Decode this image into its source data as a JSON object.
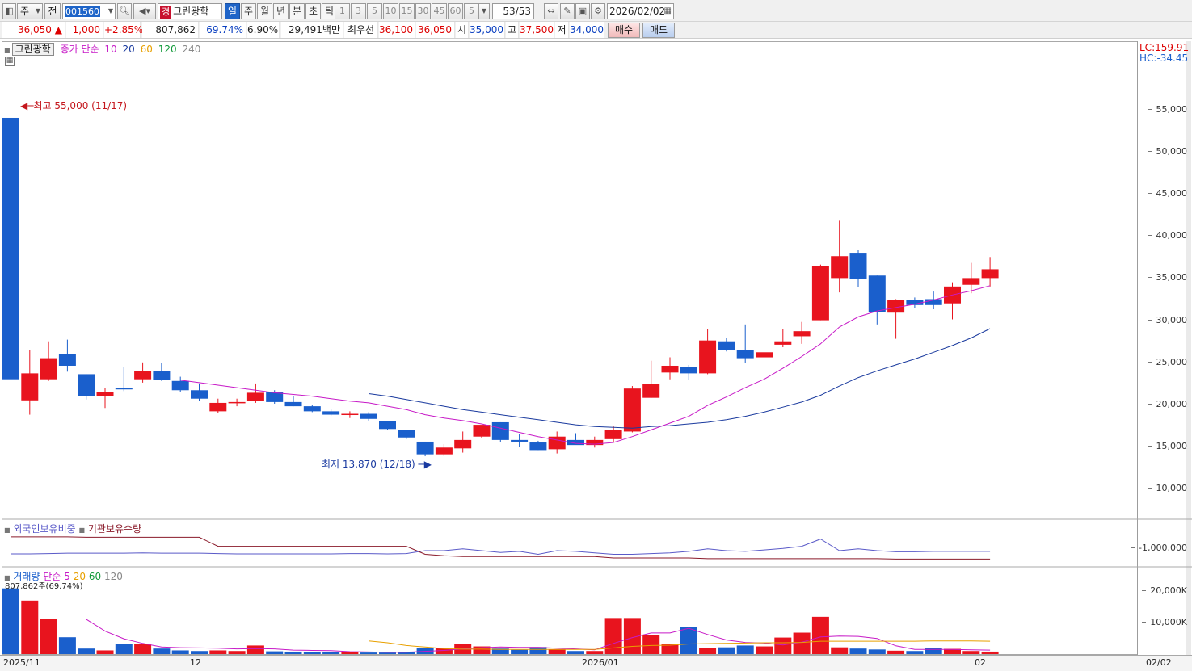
{
  "toolbar": {
    "period_label": "주",
    "prev_label": "전",
    "stock_code": "001560",
    "stock_tag": "경",
    "stock_name": "그린광학",
    "period_tabs": [
      "일",
      "주",
      "월",
      "년",
      "분",
      "초",
      "틱"
    ],
    "active_period": "일",
    "interval_buttons": [
      "1",
      "3",
      "5",
      "10",
      "15",
      "30",
      "45",
      "60"
    ],
    "custom_interval": "5",
    "count": "53/53",
    "date": "2026/02/02"
  },
  "quote": {
    "price": "36,050",
    "arrow": "▲",
    "change": "1,000",
    "change_pct": "+2.85%",
    "volume": "807,862",
    "volume_ratio": "69.74%",
    "turnover": "6.90%",
    "amount": "29,491백만",
    "best_label": "최우선",
    "best_ask": "36,100",
    "best_bid": "36,050",
    "open_label": "시",
    "open": "35,000",
    "high_label": "고",
    "high": "37,500",
    "low_label": "저",
    "low": "34,000",
    "buy_label": "매수",
    "sell_label": "매도"
  },
  "price_panel": {
    "name": "그린광학",
    "ma_label": "종가 단순",
    "ma_periods": [
      "10",
      "20",
      "60",
      "120",
      "240"
    ],
    "ma_colors": [
      "#c71ac7",
      "#1a3a9e",
      "#e8a000",
      "#129a3a",
      "#888888"
    ],
    "high_annotation": "최고 55,000 (11/17)",
    "low_annotation": "최저 13,870 (12/18)",
    "lc": "LC:159.91",
    "hc": "HC:-34.45"
  },
  "holding_panel": {
    "series1": "외국인보유비중",
    "series2": "기관보유수량",
    "axis_label": "-1,000,000"
  },
  "volume_panel": {
    "label": "거래량",
    "ma_label": "단순",
    "ma_periods": [
      "5",
      "20",
      "60",
      "120"
    ],
    "current": "807,862주(69.74%)",
    "ticks": [
      "20,000K",
      "10,000K"
    ]
  },
  "x_axis": {
    "labels": [
      "2025/11",
      "12",
      "2026/01",
      "02"
    ],
    "right_label": "02/02"
  },
  "colors": {
    "up": "#e8141e",
    "down": "#1a5fcc",
    "ma10": "#c71ac7",
    "ma20": "#1a3a9e",
    "vol_ma5": "#c71ac7",
    "vol_ma20": "#e8a000",
    "foreign": "#5a5ac8",
    "institution": "#8a1a2a"
  },
  "chart_data": {
    "type": "candlestick",
    "price_ticks": [
      55000,
      50000,
      45000,
      40000,
      35000,
      30000,
      25000,
      20000,
      15000,
      10000
    ],
    "ylim": [
      6500,
      63000
    ],
    "candles": [
      {
        "o": 54000,
        "h": 55000,
        "l": 23000,
        "c": 23000
      },
      {
        "o": 20500,
        "h": 26500,
        "l": 18800,
        "c": 23700
      },
      {
        "o": 23000,
        "h": 27500,
        "l": 22800,
        "c": 25500
      },
      {
        "o": 26000,
        "h": 27700,
        "l": 23900,
        "c": 24600
      },
      {
        "o": 23600,
        "h": 23600,
        "l": 20600,
        "c": 21000
      },
      {
        "o": 21000,
        "h": 22000,
        "l": 19600,
        "c": 21500
      },
      {
        "o": 22000,
        "h": 24500,
        "l": 21600,
        "c": 21800
      },
      {
        "o": 23000,
        "h": 25000,
        "l": 22600,
        "c": 24000
      },
      {
        "o": 24000,
        "h": 24900,
        "l": 22800,
        "c": 22900
      },
      {
        "o": 22800,
        "h": 23300,
        "l": 21500,
        "c": 21700
      },
      {
        "o": 21700,
        "h": 22500,
        "l": 20400,
        "c": 20700
      },
      {
        "o": 19200,
        "h": 20700,
        "l": 19000,
        "c": 20200
      },
      {
        "o": 20200,
        "h": 20700,
        "l": 19800,
        "c": 20300
      },
      {
        "o": 20400,
        "h": 22500,
        "l": 20200,
        "c": 21400
      },
      {
        "o": 21500,
        "h": 21700,
        "l": 20100,
        "c": 20300
      },
      {
        "o": 20300,
        "h": 21000,
        "l": 19800,
        "c": 19800
      },
      {
        "o": 19800,
        "h": 20000,
        "l": 19100,
        "c": 19200
      },
      {
        "o": 19200,
        "h": 19500,
        "l": 18700,
        "c": 18800
      },
      {
        "o": 18800,
        "h": 19200,
        "l": 18400,
        "c": 18900
      },
      {
        "o": 18900,
        "h": 19100,
        "l": 18000,
        "c": 18300
      },
      {
        "o": 18000,
        "h": 18000,
        "l": 17000,
        "c": 17100
      },
      {
        "o": 17000,
        "h": 17000,
        "l": 15900,
        "c": 16100
      },
      {
        "o": 15600,
        "h": 15600,
        "l": 13870,
        "c": 14100
      },
      {
        "o": 14100,
        "h": 15300,
        "l": 13900,
        "c": 14900
      },
      {
        "o": 14800,
        "h": 16800,
        "l": 14300,
        "c": 15800
      },
      {
        "o": 16200,
        "h": 17500,
        "l": 16000,
        "c": 17600
      },
      {
        "o": 17900,
        "h": 17900,
        "l": 15500,
        "c": 15800
      },
      {
        "o": 15800,
        "h": 16500,
        "l": 15000,
        "c": 15600
      },
      {
        "o": 15500,
        "h": 15700,
        "l": 14600,
        "c": 14600
      },
      {
        "o": 14700,
        "h": 16800,
        "l": 14200,
        "c": 16200
      },
      {
        "o": 15800,
        "h": 16600,
        "l": 15400,
        "c": 15200
      },
      {
        "o": 15200,
        "h": 16200,
        "l": 14900,
        "c": 15800
      },
      {
        "o": 15900,
        "h": 17500,
        "l": 15500,
        "c": 17000
      },
      {
        "o": 16800,
        "h": 22200,
        "l": 16700,
        "c": 21900
      },
      {
        "o": 20800,
        "h": 25200,
        "l": 20800,
        "c": 22400
      },
      {
        "o": 23800,
        "h": 25600,
        "l": 23000,
        "c": 24600
      },
      {
        "o": 24500,
        "h": 24700,
        "l": 22900,
        "c": 23700
      },
      {
        "o": 23700,
        "h": 29000,
        "l": 23600,
        "c": 27600
      },
      {
        "o": 27500,
        "h": 27900,
        "l": 26300,
        "c": 26500
      },
      {
        "o": 26500,
        "h": 29500,
        "l": 24900,
        "c": 25500
      },
      {
        "o": 25600,
        "h": 27500,
        "l": 24500,
        "c": 26200
      },
      {
        "o": 27100,
        "h": 29000,
        "l": 26800,
        "c": 27500
      },
      {
        "o": 28100,
        "h": 29800,
        "l": 27200,
        "c": 28700
      },
      {
        "o": 30000,
        "h": 36600,
        "l": 30000,
        "c": 36400
      },
      {
        "o": 35000,
        "h": 41800,
        "l": 33300,
        "c": 37600
      },
      {
        "o": 38000,
        "h": 38300,
        "l": 33900,
        "c": 34900
      },
      {
        "o": 35300,
        "h": 35300,
        "l": 29500,
        "c": 31000
      },
      {
        "o": 30900,
        "h": 32500,
        "l": 27800,
        "c": 32400
      },
      {
        "o": 32400,
        "h": 32700,
        "l": 31400,
        "c": 31800
      },
      {
        "o": 32500,
        "h": 33400,
        "l": 31300,
        "c": 31800
      },
      {
        "o": 32000,
        "h": 34500,
        "l": 30100,
        "c": 34000
      },
      {
        "o": 34200,
        "h": 36800,
        "l": 33200,
        "c": 35000
      },
      {
        "o": 35000,
        "h": 37500,
        "l": 34000,
        "c": 36050
      }
    ],
    "ma10": [
      [
        9,
        22900
      ],
      [
        10,
        22600
      ],
      [
        11,
        22300
      ],
      [
        12,
        22000
      ],
      [
        13,
        21700
      ],
      [
        14,
        21400
      ],
      [
        15,
        21200
      ],
      [
        16,
        21000
      ],
      [
        17,
        20700
      ],
      [
        18,
        20400
      ],
      [
        19,
        20200
      ],
      [
        20,
        19800
      ],
      [
        21,
        19400
      ],
      [
        22,
        18800
      ],
      [
        23,
        18400
      ],
      [
        24,
        18100
      ],
      [
        25,
        17700
      ],
      [
        26,
        17200
      ],
      [
        27,
        16700
      ],
      [
        28,
        16200
      ],
      [
        29,
        15800
      ],
      [
        30,
        15400
      ],
      [
        31,
        15300
      ],
      [
        32,
        15500
      ],
      [
        33,
        16200
      ],
      [
        34,
        17000
      ],
      [
        35,
        17800
      ],
      [
        36,
        18600
      ],
      [
        37,
        19900
      ],
      [
        38,
        20900
      ],
      [
        39,
        22000
      ],
      [
        40,
        23000
      ],
      [
        41,
        24300
      ],
      [
        42,
        25700
      ],
      [
        43,
        27200
      ],
      [
        44,
        29200
      ],
      [
        45,
        30400
      ],
      [
        46,
        31100
      ],
      [
        47,
        31500
      ],
      [
        48,
        31900
      ],
      [
        49,
        32400
      ],
      [
        50,
        33000
      ],
      [
        51,
        33500
      ],
      [
        52,
        34100
      ]
    ],
    "ma20": [
      [
        19,
        21300
      ],
      [
        20,
        21000
      ],
      [
        21,
        20600
      ],
      [
        22,
        20200
      ],
      [
        23,
        19800
      ],
      [
        24,
        19400
      ],
      [
        25,
        19100
      ],
      [
        26,
        18800
      ],
      [
        27,
        18500
      ],
      [
        28,
        18200
      ],
      [
        29,
        17900
      ],
      [
        30,
        17600
      ],
      [
        31,
        17400
      ],
      [
        32,
        17300
      ],
      [
        33,
        17200
      ],
      [
        34,
        17400
      ],
      [
        35,
        17500
      ],
      [
        36,
        17700
      ],
      [
        37,
        17900
      ],
      [
        38,
        18200
      ],
      [
        39,
        18600
      ],
      [
        40,
        19100
      ],
      [
        41,
        19700
      ],
      [
        42,
        20300
      ],
      [
        43,
        21100
      ],
      [
        44,
        22200
      ],
      [
        45,
        23200
      ],
      [
        46,
        24000
      ],
      [
        47,
        24700
      ],
      [
        48,
        25400
      ],
      [
        49,
        26200
      ],
      [
        50,
        27000
      ],
      [
        51,
        27900
      ],
      [
        52,
        29000
      ]
    ],
    "volume_ticks": [
      20000,
      10000
    ],
    "volume_ylim": [
      0,
      27500
    ],
    "volumes": [
      21500,
      17500,
      11500,
      5500,
      1800,
      1200,
      3200,
      3300,
      1800,
      1200,
      1000,
      1200,
      1000,
      2800,
      900,
      800,
      700,
      700,
      600,
      500,
      500,
      600,
      1900,
      2100,
      3200,
      2500,
      1800,
      1400,
      2300,
      1500,
      1000,
      1000,
      11800,
      11800,
      6200,
      3300,
      8900,
      1900,
      2200,
      2800,
      2500,
      5400,
      7000,
      12200,
      2200,
      1800,
      1500,
      1100,
      1000,
      2000,
      1700,
      1000,
      807.862
    ],
    "vol_ma5": [
      [
        4,
        11400
      ],
      [
        5,
        7500
      ],
      [
        6,
        5000
      ],
      [
        7,
        3500
      ],
      [
        8,
        2300
      ],
      [
        9,
        2100
      ],
      [
        10,
        2000
      ],
      [
        11,
        1900
      ],
      [
        12,
        1700
      ],
      [
        13,
        1800
      ],
      [
        14,
        1700
      ],
      [
        15,
        1300
      ],
      [
        16,
        1200
      ],
      [
        17,
        1100
      ],
      [
        18,
        800
      ],
      [
        19,
        700
      ],
      [
        20,
        600
      ],
      [
        21,
        600
      ],
      [
        22,
        900
      ],
      [
        23,
        1200
      ],
      [
        24,
        1700
      ],
      [
        25,
        2100
      ],
      [
        26,
        2300
      ],
      [
        27,
        2200
      ],
      [
        28,
        2200
      ],
      [
        29,
        1900
      ],
      [
        30,
        1700
      ],
      [
        31,
        1400
      ],
      [
        32,
        3500
      ],
      [
        33,
        5400
      ],
      [
        34,
        6900
      ],
      [
        35,
        6900
      ],
      [
        36,
        8400
      ],
      [
        37,
        6400
      ],
      [
        38,
        4600
      ],
      [
        39,
        3800
      ],
      [
        40,
        3600
      ],
      [
        41,
        3000
      ],
      [
        42,
        3900
      ],
      [
        43,
        5600
      ],
      [
        44,
        5900
      ],
      [
        45,
        5800
      ],
      [
        46,
        5100
      ],
      [
        47,
        2700
      ],
      [
        48,
        1500
      ],
      [
        49,
        1500
      ],
      [
        50,
        1500
      ],
      [
        51,
        1400
      ],
      [
        52,
        1300
      ]
    ],
    "vol_ma20": [
      [
        19,
        4300
      ],
      [
        20,
        3700
      ],
      [
        21,
        2800
      ],
      [
        22,
        2300
      ],
      [
        23,
        1800
      ],
      [
        24,
        1600
      ],
      [
        25,
        1600
      ],
      [
        26,
        1500
      ],
      [
        27,
        1500
      ],
      [
        28,
        1500
      ],
      [
        29,
        1500
      ],
      [
        30,
        1500
      ],
      [
        31,
        1500
      ],
      [
        32,
        2000
      ],
      [
        33,
        2500
      ],
      [
        34,
        2800
      ],
      [
        35,
        2900
      ],
      [
        36,
        3300
      ],
      [
        37,
        3400
      ],
      [
        38,
        3500
      ],
      [
        39,
        3600
      ],
      [
        40,
        3700
      ],
      [
        41,
        3700
      ],
      [
        42,
        3800
      ],
      [
        43,
        4200
      ],
      [
        44,
        4200
      ],
      [
        45,
        4200
      ],
      [
        46,
        4200
      ],
      [
        47,
        4200
      ],
      [
        48,
        4200
      ],
      [
        49,
        4300
      ],
      [
        50,
        4300
      ],
      [
        51,
        4300
      ],
      [
        52,
        4200
      ]
    ],
    "foreign_holding": [
      0.31,
      0.31,
      0.32,
      0.33,
      0.33,
      0.33,
      0.33,
      0.34,
      0.33,
      0.33,
      0.33,
      0.32,
      0.31,
      0.31,
      0.31,
      0.31,
      0.31,
      0.31,
      0.32,
      0.32,
      0.31,
      0.32,
      0.4,
      0.4,
      0.45,
      0.4,
      0.35,
      0.38,
      0.3,
      0.4,
      0.38,
      0.34,
      0.3,
      0.3,
      0.32,
      0.34,
      0.38,
      0.45,
      0.4,
      0.38,
      0.42,
      0.46,
      0.52,
      0.72,
      0.4,
      0.45,
      0.4,
      0.37,
      0.37,
      0.38,
      0.38,
      0.38,
      0.38
    ],
    "institution_holding": [
      0.78,
      0.78,
      0.78,
      0.78,
      0.77,
      0.77,
      0.77,
      0.77,
      0.77,
      0.77,
      0.77,
      0.52,
      0.52,
      0.52,
      0.52,
      0.52,
      0.52,
      0.52,
      0.52,
      0.52,
      0.52,
      0.52,
      0.3,
      0.26,
      0.24,
      0.24,
      0.24,
      0.24,
      0.24,
      0.24,
      0.24,
      0.24,
      0.2,
      0.2,
      0.2,
      0.2,
      0.2,
      0.18,
      0.18,
      0.18,
      0.18,
      0.18,
      0.18,
      0.18,
      0.18,
      0.18,
      0.18,
      0.17,
      0.17,
      0.17,
      0.17,
      0.17,
      0.17
    ]
  }
}
